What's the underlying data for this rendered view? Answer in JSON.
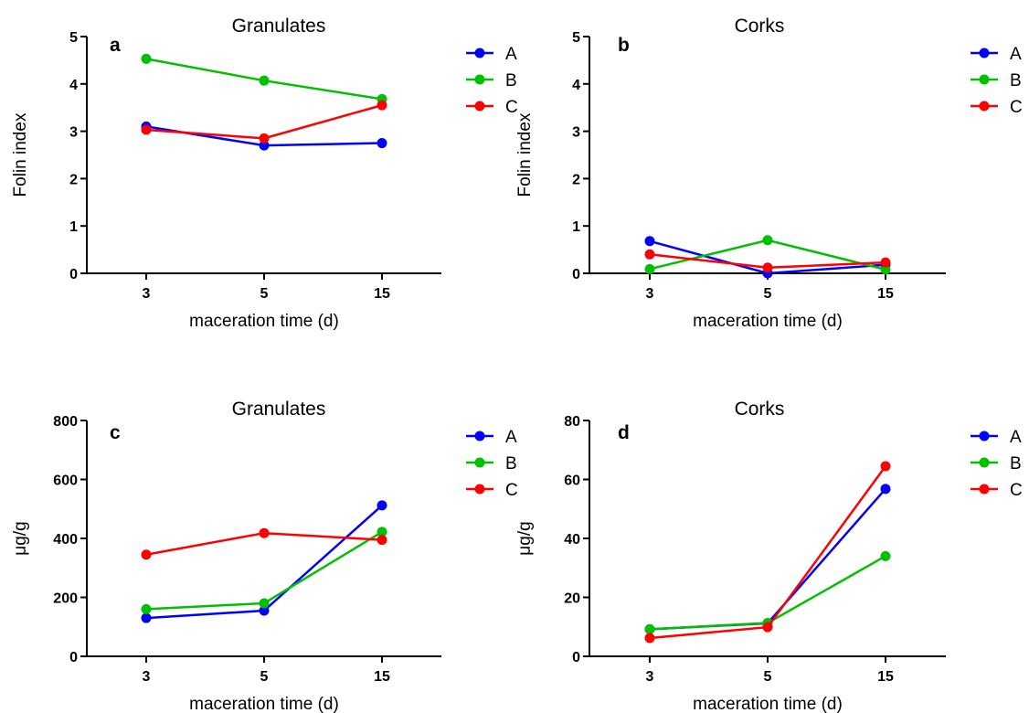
{
  "chart_data": [
    {
      "type": "line",
      "panel_label": "a",
      "title": "Granulates",
      "xlabel": "maceration time (d)",
      "ylabel": "Folin index",
      "categories": [
        "3",
        "5",
        "15"
      ],
      "ylim": [
        0,
        5
      ],
      "yticks": [
        "0",
        "1",
        "2",
        "3",
        "4",
        "5"
      ],
      "series": [
        {
          "name": "A",
          "color": "#0000ff",
          "values": [
            3.1,
            2.7,
            2.75
          ]
        },
        {
          "name": "B",
          "color": "#00c000",
          "values": [
            4.53,
            4.07,
            3.68
          ]
        },
        {
          "name": "C",
          "color": "#ff0000",
          "values": [
            3.03,
            2.85,
            3.55
          ]
        }
      ],
      "legend": "right",
      "grid": false
    },
    {
      "type": "line",
      "panel_label": "b",
      "title": "Corks",
      "xlabel": "maceration time (d)",
      "ylabel": "Folin index",
      "categories": [
        "3",
        "5",
        "15"
      ],
      "ylim": [
        0,
        5
      ],
      "yticks": [
        "0",
        "1",
        "2",
        "3",
        "4",
        "5"
      ],
      "series": [
        {
          "name": "A",
          "color": "#0000ff",
          "values": [
            0.68,
            0.0,
            0.18
          ]
        },
        {
          "name": "B",
          "color": "#00c000",
          "values": [
            0.09,
            0.7,
            0.08
          ]
        },
        {
          "name": "C",
          "color": "#ff0000",
          "values": [
            0.4,
            0.12,
            0.23
          ]
        }
      ],
      "legend": "right",
      "grid": false
    },
    {
      "type": "line",
      "panel_label": "c",
      "title": "Granulates",
      "xlabel": "maceration time (d)",
      "ylabel": "μg/g",
      "categories": [
        "3",
        "5",
        "15"
      ],
      "ylim": [
        0,
        800
      ],
      "yticks": [
        "0",
        "200",
        "400",
        "600",
        "800"
      ],
      "series": [
        {
          "name": "A",
          "color": "#0000ff",
          "values": [
            130,
            155,
            512
          ]
        },
        {
          "name": "B",
          "color": "#00c000",
          "values": [
            160,
            180,
            422
          ]
        },
        {
          "name": "C",
          "color": "#ff0000",
          "values": [
            345,
            418,
            395
          ]
        }
      ],
      "legend": "right",
      "grid": false
    },
    {
      "type": "line",
      "panel_label": "d",
      "title": "Corks",
      "xlabel": "maceration time (d)",
      "ylabel": "μg/g",
      "categories": [
        "3",
        "5",
        "15"
      ],
      "ylim": [
        0,
        80
      ],
      "yticks": [
        "0",
        "20",
        "40",
        "60",
        "80"
      ],
      "series": [
        {
          "name": "A",
          "color": "#0000ff",
          "values": [
            9.2,
            11.2,
            56.8
          ]
        },
        {
          "name": "B",
          "color": "#00c000",
          "values": [
            9.2,
            11.3,
            34.0
          ]
        },
        {
          "name": "C",
          "color": "#ff0000",
          "values": [
            6.2,
            9.9,
            64.5
          ]
        }
      ],
      "legend": "right",
      "grid": false
    }
  ]
}
